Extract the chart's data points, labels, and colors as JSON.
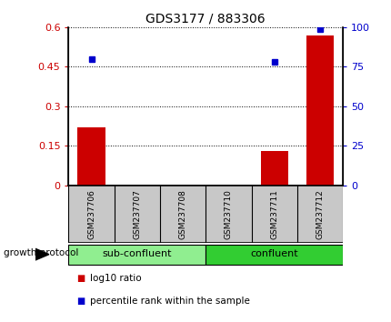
{
  "title": "GDS3177 / 883306",
  "samples": [
    "GSM237706",
    "GSM237707",
    "GSM237708",
    "GSM237710",
    "GSM237711",
    "GSM237712"
  ],
  "log10_ratio": [
    0.22,
    0.0,
    0.0,
    0.0,
    0.13,
    0.57
  ],
  "percentile_rank": [
    80,
    null,
    null,
    null,
    78,
    99
  ],
  "ylim_left": [
    0,
    0.6
  ],
  "ylim_right": [
    0,
    100
  ],
  "yticks_left": [
    0,
    0.15,
    0.3,
    0.45,
    0.6
  ],
  "yticks_right": [
    0,
    25,
    50,
    75,
    100
  ],
  "ytick_labels_left": [
    "0",
    "0.15",
    "0.3",
    "0.45",
    "0.6"
  ],
  "ytick_labels_right": [
    "0",
    "25",
    "50",
    "75",
    "100"
  ],
  "bar_color": "#cc0000",
  "dot_color": "#0000cc",
  "groups": [
    {
      "label": "sub-confluent",
      "indices": [
        0,
        1,
        2
      ],
      "color": "#90ee90"
    },
    {
      "label": "confluent",
      "indices": [
        3,
        4,
        5
      ],
      "color": "#32cd32"
    }
  ],
  "group_label": "growth protocol",
  "legend": [
    {
      "label": "log10 ratio",
      "color": "#cc0000"
    },
    {
      "label": "percentile rank within the sample",
      "color": "#0000cc"
    }
  ],
  "background_color": "#ffffff",
  "sample_box_color": "#c8c8c8",
  "tick_color_left": "#cc0000",
  "tick_color_right": "#0000cc"
}
